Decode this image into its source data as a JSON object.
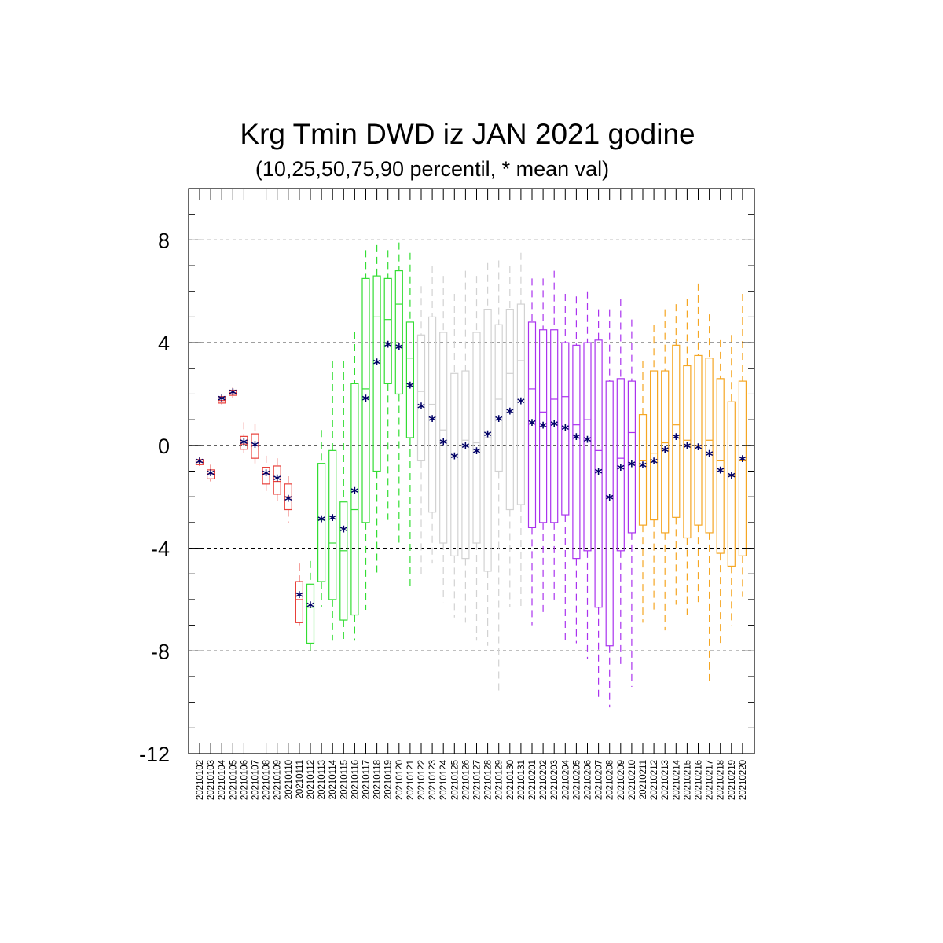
{
  "chart_data": {
    "type": "boxplot",
    "title": "Krg Tmin DWD iz JAN 2021 godine",
    "subtitle": "(10,25,50,75,90 percentil, * mean val)",
    "xlabel": "",
    "ylabel": "",
    "ylim": [
      -12,
      10
    ],
    "y_ticks": [
      -12,
      -8,
      -4,
      0,
      4,
      8
    ],
    "y_tick_labels": [
      "-12",
      "-8",
      "-4",
      "0",
      "4",
      "8"
    ],
    "grid_lines": [
      -8,
      -4,
      0,
      4,
      8
    ],
    "grid": true,
    "colors": {
      "red": "#e8403a",
      "green": "#33dd33",
      "gray": "#d2d2d2",
      "purple": "#aa33ee",
      "orange": "#f5a623",
      "mean": "#000066"
    },
    "boxes": [
      {
        "date": "20210102",
        "p10": -0.8,
        "p25": -0.75,
        "p50": -0.65,
        "p75": -0.55,
        "p90": -0.45,
        "mean": -0.65,
        "group": "red"
      },
      {
        "date": "20210103",
        "p10": -1.4,
        "p25": -1.3,
        "p50": -1.1,
        "p75": -0.95,
        "p90": -0.75,
        "mean": -1.1,
        "group": "red"
      },
      {
        "date": "20210104",
        "p10": 1.6,
        "p25": 1.65,
        "p50": 1.75,
        "p75": 1.9,
        "p90": 2.0,
        "mean": 1.8,
        "group": "red"
      },
      {
        "date": "20210105",
        "p10": 1.85,
        "p25": 1.95,
        "p50": 2.05,
        "p75": 2.15,
        "p90": 2.25,
        "mean": 2.05,
        "group": "red"
      },
      {
        "date": "20210106",
        "p10": -0.3,
        "p25": -0.15,
        "p50": 0.05,
        "p75": 0.35,
        "p90": 0.9,
        "mean": 0.1,
        "group": "red"
      },
      {
        "date": "20210107",
        "p10": -0.7,
        "p25": -0.5,
        "p50": 0.0,
        "p75": 0.45,
        "p90": 0.85,
        "mean": 0.0,
        "group": "red"
      },
      {
        "date": "20210108",
        "p10": -1.8,
        "p25": -1.5,
        "p50": -1.1,
        "p75": -0.85,
        "p90": -0.4,
        "mean": -1.1,
        "group": "red"
      },
      {
        "date": "20210109",
        "p10": -2.2,
        "p25": -1.9,
        "p50": -1.4,
        "p75": -0.8,
        "p90": -0.5,
        "mean": -1.3,
        "group": "red"
      },
      {
        "date": "20210110",
        "p10": -3.0,
        "p25": -2.5,
        "p50": -2.0,
        "p75": -1.5,
        "p90": -1.2,
        "mean": -2.1,
        "group": "red"
      },
      {
        "date": "20210111",
        "p10": -7.0,
        "p25": -6.9,
        "p50": -6.0,
        "p75": -5.3,
        "p90": -4.6,
        "mean": -5.85,
        "group": "red"
      },
      {
        "date": "20210112",
        "p10": -8.0,
        "p25": -7.7,
        "p50": -6.3,
        "p75": -5.4,
        "p90": -4.5,
        "mean": -6.25,
        "group": "green"
      },
      {
        "date": "20210113",
        "p10": -6.3,
        "p25": -5.3,
        "p50": -2.9,
        "p75": -0.7,
        "p90": 0.6,
        "mean": -2.9,
        "group": "green"
      },
      {
        "date": "20210114",
        "p10": -7.6,
        "p25": -6.0,
        "p50": -3.8,
        "p75": -0.2,
        "p90": 3.3,
        "mean": -2.85,
        "group": "green"
      },
      {
        "date": "20210115",
        "p10": -7.6,
        "p25": -6.8,
        "p50": -4.1,
        "p75": -2.2,
        "p90": 3.3,
        "mean": -3.3,
        "group": "green"
      },
      {
        "date": "20210116",
        "p10": -7.6,
        "p25": -6.6,
        "p50": -2.5,
        "p75": 2.4,
        "p90": 4.4,
        "mean": -1.8,
        "group": "green"
      },
      {
        "date": "20210117",
        "p10": -6.4,
        "p25": -3.0,
        "p50": 2.2,
        "p75": 6.5,
        "p90": 7.6,
        "mean": 1.8,
        "group": "green"
      },
      {
        "date": "20210118",
        "p10": -5.1,
        "p25": -1.0,
        "p50": 5.0,
        "p75": 6.6,
        "p90": 7.8,
        "mean": 3.2,
        "group": "green"
      },
      {
        "date": "20210119",
        "p10": -2.9,
        "p25": 2.4,
        "p50": 4.9,
        "p75": 6.5,
        "p90": 7.6,
        "mean": 3.9,
        "group": "green"
      },
      {
        "date": "20210120",
        "p10": -3.8,
        "p25": 2.0,
        "p50": 5.5,
        "p75": 6.8,
        "p90": 7.9,
        "mean": 3.8,
        "group": "green"
      },
      {
        "date": "20210121",
        "p10": -5.6,
        "p25": 0.3,
        "p50": 3.4,
        "p75": 4.8,
        "p90": 7.5,
        "mean": 2.3,
        "group": "green"
      },
      {
        "date": "20210122",
        "p10": -5.0,
        "p25": -0.6,
        "p50": 2.1,
        "p75": 4.3,
        "p90": 6.2,
        "mean": 1.5,
        "group": "gray"
      },
      {
        "date": "20210123",
        "p10": -4.6,
        "p25": -2.6,
        "p50": 1.6,
        "p75": 5.0,
        "p90": 7.0,
        "mean": 1.0,
        "group": "gray"
      },
      {
        "date": "20210124",
        "p10": -6.1,
        "p25": -3.8,
        "p50": 0.6,
        "p75": 4.4,
        "p90": 6.6,
        "mean": 0.1,
        "group": "gray"
      },
      {
        "date": "20210125",
        "p10": -6.7,
        "p25": -4.3,
        "p50": -0.4,
        "p75": 2.8,
        "p90": 5.9,
        "mean": -0.45,
        "group": "gray"
      },
      {
        "date": "20210126",
        "p10": -6.9,
        "p25": -4.4,
        "p50": 0.2,
        "p75": 2.9,
        "p90": 6.8,
        "mean": -0.05,
        "group": "gray"
      },
      {
        "date": "20210127",
        "p10": -7.6,
        "p25": -3.8,
        "p50": 0.1,
        "p75": 4.4,
        "p90": 6.6,
        "mean": -0.25,
        "group": "gray"
      },
      {
        "date": "20210128",
        "p10": -7.8,
        "p25": -4.9,
        "p50": 0.3,
        "p75": 5.3,
        "p90": 7.1,
        "mean": 0.4,
        "group": "gray"
      },
      {
        "date": "20210129",
        "p10": -9.7,
        "p25": -1.0,
        "p50": 1.8,
        "p75": 4.7,
        "p90": 7.2,
        "mean": 1.0,
        "group": "gray"
      },
      {
        "date": "20210130",
        "p10": -6.3,
        "p25": -2.5,
        "p50": 2.8,
        "p75": 5.3,
        "p90": 7.0,
        "mean": 1.3,
        "group": "gray"
      },
      {
        "date": "20210131",
        "p10": -6.3,
        "p25": -2.3,
        "p50": 3.3,
        "p75": 5.5,
        "p90": 7.5,
        "mean": 1.7,
        "group": "gray"
      },
      {
        "date": "20210201",
        "p10": -7.0,
        "p25": -3.2,
        "p50": 2.2,
        "p75": 4.8,
        "p90": 6.5,
        "mean": 0.85,
        "group": "purple"
      },
      {
        "date": "20210202",
        "p10": -6.5,
        "p25": -3.0,
        "p50": 1.3,
        "p75": 4.5,
        "p90": 6.5,
        "mean": 0.75,
        "group": "purple"
      },
      {
        "date": "20210203",
        "p10": -6.0,
        "p25": -3.0,
        "p50": 1.8,
        "p75": 4.5,
        "p90": 6.8,
        "mean": 0.8,
        "group": "purple"
      },
      {
        "date": "20210204",
        "p10": -7.7,
        "p25": -2.7,
        "p50": 1.9,
        "p75": 4.0,
        "p90": 5.9,
        "mean": 0.65,
        "group": "purple"
      },
      {
        "date": "20210205",
        "p10": -7.7,
        "p25": -4.4,
        "p50": 0.8,
        "p75": 3.9,
        "p90": 5.8,
        "mean": 0.3,
        "group": "purple"
      },
      {
        "date": "20210206",
        "p10": -8.3,
        "p25": -4.1,
        "p50": 1.0,
        "p75": 4.0,
        "p90": 6.0,
        "mean": 0.2,
        "group": "purple"
      },
      {
        "date": "20210207",
        "p10": -9.8,
        "p25": -6.3,
        "p50": -0.2,
        "p75": 4.1,
        "p90": 5.3,
        "mean": -1.05,
        "group": "purple"
      },
      {
        "date": "20210208",
        "p10": -10.2,
        "p25": -7.8,
        "p50": -2.0,
        "p75": 2.5,
        "p90": 5.3,
        "mean": -2.05,
        "group": "purple"
      },
      {
        "date": "20210209",
        "p10": -8.6,
        "p25": -4.1,
        "p50": -0.5,
        "p75": 2.6,
        "p90": 5.7,
        "mean": -0.9,
        "group": "purple"
      },
      {
        "date": "20210210",
        "p10": -9.4,
        "p25": -3.4,
        "p50": 0.5,
        "p75": 2.5,
        "p90": 4.9,
        "mean": -0.75,
        "group": "purple"
      },
      {
        "date": "20210211",
        "p10": -6.9,
        "p25": -3.1,
        "p50": -0.6,
        "p75": 1.2,
        "p90": 3.3,
        "mean": -0.8,
        "group": "orange"
      },
      {
        "date": "20210212",
        "p10": -6.5,
        "p25": -2.9,
        "p50": -0.3,
        "p75": 2.9,
        "p90": 4.7,
        "mean": -0.65,
        "group": "orange"
      },
      {
        "date": "20210213",
        "p10": -7.2,
        "p25": -3.4,
        "p50": 0.1,
        "p75": 2.9,
        "p90": 5.3,
        "mean": -0.2,
        "group": "orange"
      },
      {
        "date": "20210214",
        "p10": -6.2,
        "p25": -2.8,
        "p50": 0.8,
        "p75": 3.9,
        "p90": 5.5,
        "mean": 0.3,
        "group": "orange"
      },
      {
        "date": "20210215",
        "p10": -6.6,
        "p25": -3.6,
        "p50": 0.2,
        "p75": 3.1,
        "p90": 5.7,
        "mean": -0.05,
        "group": "orange"
      },
      {
        "date": "20210216",
        "p10": -6.1,
        "p25": -3.1,
        "p50": 0.0,
        "p75": 3.5,
        "p90": 6.3,
        "mean": -0.1,
        "group": "orange"
      },
      {
        "date": "20210217",
        "p10": -9.3,
        "p25": -3.4,
        "p50": 0.2,
        "p75": 3.4,
        "p90": 5.1,
        "mean": -0.35,
        "group": "orange"
      },
      {
        "date": "20210218",
        "p10": -7.9,
        "p25": -4.2,
        "p50": -0.6,
        "p75": 2.6,
        "p90": 4.1,
        "mean": -1.0,
        "group": "orange"
      },
      {
        "date": "20210219",
        "p10": -7.0,
        "p25": -4.7,
        "p50": -1.2,
        "p75": 1.7,
        "p90": 4.3,
        "mean": -1.2,
        "group": "orange"
      },
      {
        "date": "20210220",
        "p10": -5.9,
        "p25": -4.3,
        "p50": -0.6,
        "p75": 2.5,
        "p90": 5.9,
        "mean": -0.55,
        "group": "orange"
      }
    ]
  }
}
